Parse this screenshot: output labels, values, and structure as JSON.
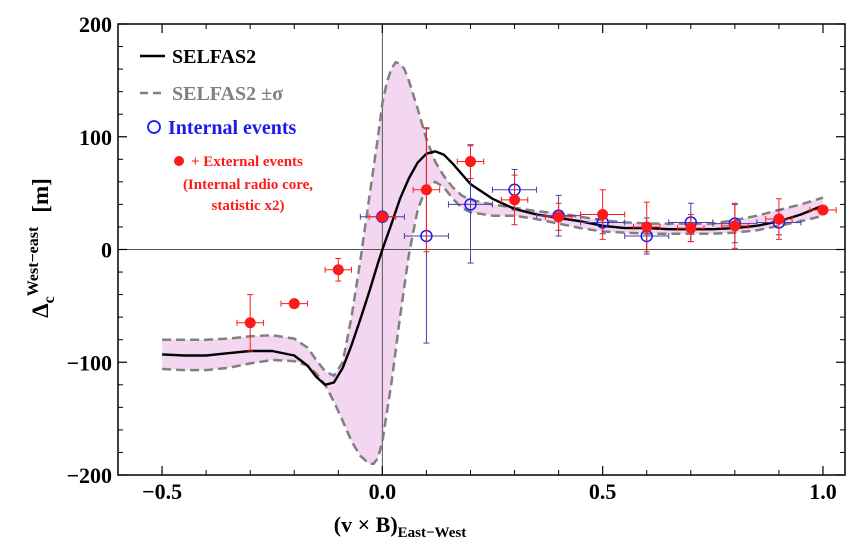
{
  "chart_data": {
    "type": "scatter",
    "xlabel": "(v × B)",
    "xlabel_sub": "East−West",
    "ylabel": "Δ",
    "ylabel_sub": "c",
    "ylabel_sup": "West−east",
    "ylabel_unit": "[m]",
    "xlim": [
      -0.6,
      1.05
    ],
    "ylim": [
      -200,
      200
    ],
    "x_ticks": [
      -0.5,
      0.0,
      0.5,
      1.0
    ],
    "x_tick_labels": [
      "−0.5",
      "0.0",
      "0.5",
      "1.0"
    ],
    "y_ticks": [
      -200,
      -100,
      0,
      100,
      200
    ],
    "y_tick_labels": [
      "−200",
      "−100",
      "0",
      "100",
      "200"
    ],
    "legend": {
      "selfas": "SELFAS2",
      "sigma": "SELFAS2 ±σ",
      "internal": "Internal events",
      "external": "+ External events",
      "note_line1": "(Internal radio core,",
      "note_line2": "statistic x2)"
    },
    "colors": {
      "simulation": "#000000",
      "sigma": "#808080",
      "band": "#f3d6ef",
      "internal": "#1a1aee",
      "external": "#ff1a1a",
      "internal_err": "#4b3fa8"
    },
    "series": [
      {
        "name": "SELFAS2",
        "style": "solid",
        "x": [
          -0.5,
          -0.45,
          -0.4,
          -0.35,
          -0.3,
          -0.25,
          -0.2,
          -0.17,
          -0.15,
          -0.13,
          -0.11,
          -0.09,
          -0.07,
          -0.05,
          -0.03,
          -0.01,
          0.0,
          0.02,
          0.04,
          0.06,
          0.08,
          0.1,
          0.12,
          0.14,
          0.16,
          0.18,
          0.2,
          0.25,
          0.3,
          0.35,
          0.4,
          0.45,
          0.5,
          0.55,
          0.6,
          0.65,
          0.7,
          0.75,
          0.8,
          0.85,
          0.9,
          0.95,
          1.0
        ],
        "y": [
          -93,
          -94,
          -94,
          -92,
          -90,
          -90,
          -94,
          -103,
          -113,
          -120,
          -118,
          -105,
          -85,
          -62,
          -38,
          -12,
          0,
          22,
          45,
          63,
          77,
          85,
          87,
          84,
          76,
          67,
          58,
          45,
          36,
          31,
          28,
          25,
          21,
          19,
          19,
          18,
          18,
          18,
          19,
          21,
          25,
          31,
          39
        ]
      },
      {
        "name": "SELFAS2 +σ",
        "style": "dashed",
        "x": [
          -0.5,
          -0.45,
          -0.4,
          -0.35,
          -0.3,
          -0.25,
          -0.2,
          -0.17,
          -0.15,
          -0.13,
          -0.11,
          -0.09,
          -0.07,
          -0.05,
          -0.03,
          -0.01,
          0.0,
          0.01,
          0.02,
          0.03,
          0.04,
          0.05,
          0.06,
          0.08,
          0.1,
          0.12,
          0.14,
          0.16,
          0.18,
          0.2,
          0.25,
          0.3,
          0.35,
          0.4,
          0.45,
          0.5,
          0.55,
          0.6,
          0.65,
          0.7,
          0.75,
          0.8,
          0.85,
          0.9,
          0.95,
          1.0
        ],
        "y": [
          -80,
          -80,
          -80,
          -79,
          -77,
          -76,
          -79,
          -87,
          -98,
          -108,
          -112,
          -100,
          -60,
          -10,
          45,
          100,
          130,
          148,
          160,
          166,
          165,
          160,
          150,
          125,
          98,
          78,
          65,
          55,
          48,
          44,
          40,
          37,
          34,
          32,
          29,
          26,
          24,
          23,
          23,
          23,
          23,
          26,
          30,
          35,
          40,
          46
        ]
      },
      {
        "name": "SELFAS2 −σ",
        "style": "dashed",
        "x": [
          -0.5,
          -0.45,
          -0.4,
          -0.35,
          -0.3,
          -0.25,
          -0.2,
          -0.17,
          -0.15,
          -0.13,
          -0.11,
          -0.09,
          -0.07,
          -0.05,
          -0.03,
          -0.02,
          -0.01,
          0.0,
          0.02,
          0.04,
          0.06,
          0.08,
          0.1,
          0.12,
          0.14,
          0.16,
          0.18,
          0.2,
          0.25,
          0.3,
          0.35,
          0.4,
          0.45,
          0.5,
          0.55,
          0.6,
          0.65,
          0.7,
          0.75,
          0.8,
          0.85,
          0.9,
          0.95,
          1.0
        ],
        "y": [
          -106,
          -107,
          -107,
          -105,
          -101,
          -98,
          -99,
          -103,
          -110,
          -120,
          -135,
          -152,
          -170,
          -183,
          -190,
          -190,
          -185,
          -170,
          -120,
          -60,
          -5,
          35,
          55,
          60,
          55,
          45,
          37,
          33,
          30,
          30,
          27,
          23,
          19,
          16,
          15,
          14,
          14,
          14,
          14,
          15,
          17,
          21,
          25,
          30
        ]
      },
      {
        "name": "Internal events",
        "marker": "open-circle",
        "x": [
          0.0,
          0.1,
          0.2,
          0.3,
          0.4,
          0.5,
          0.6,
          0.7,
          0.8,
          0.9
        ],
        "y": [
          29,
          12,
          40,
          53,
          30,
          24,
          12,
          24,
          23,
          24
        ],
        "xerr": [
          0.05,
          0.05,
          0.05,
          0.05,
          0.05,
          0.05,
          0.05,
          0.05,
          0.05,
          0.05
        ],
        "yerr": [
          0,
          95,
          52,
          18,
          18,
          10,
          16,
          17,
          17,
          11
        ]
      },
      {
        "name": "+ External events",
        "marker": "filled-circle",
        "x": [
          -0.3,
          -0.2,
          -0.1,
          0.0,
          0.1,
          0.2,
          0.3,
          0.4,
          0.5,
          0.6,
          0.7,
          0.8,
          0.9,
          1.0
        ],
        "y": [
          -65,
          -48,
          -18,
          29,
          53,
          78,
          44,
          29,
          31,
          20,
          19,
          21,
          27,
          35
        ],
        "xerr": [
          0.03,
          0.03,
          0.03,
          0.03,
          0.03,
          0.03,
          0.03,
          0.03,
          0.05,
          0.03,
          0.03,
          0.03,
          0.03,
          0.03
        ],
        "yerr": [
          25,
          0,
          10,
          0,
          55,
          15,
          22,
          12,
          22,
          22,
          12,
          20,
          18,
          0
        ]
      }
    ]
  }
}
